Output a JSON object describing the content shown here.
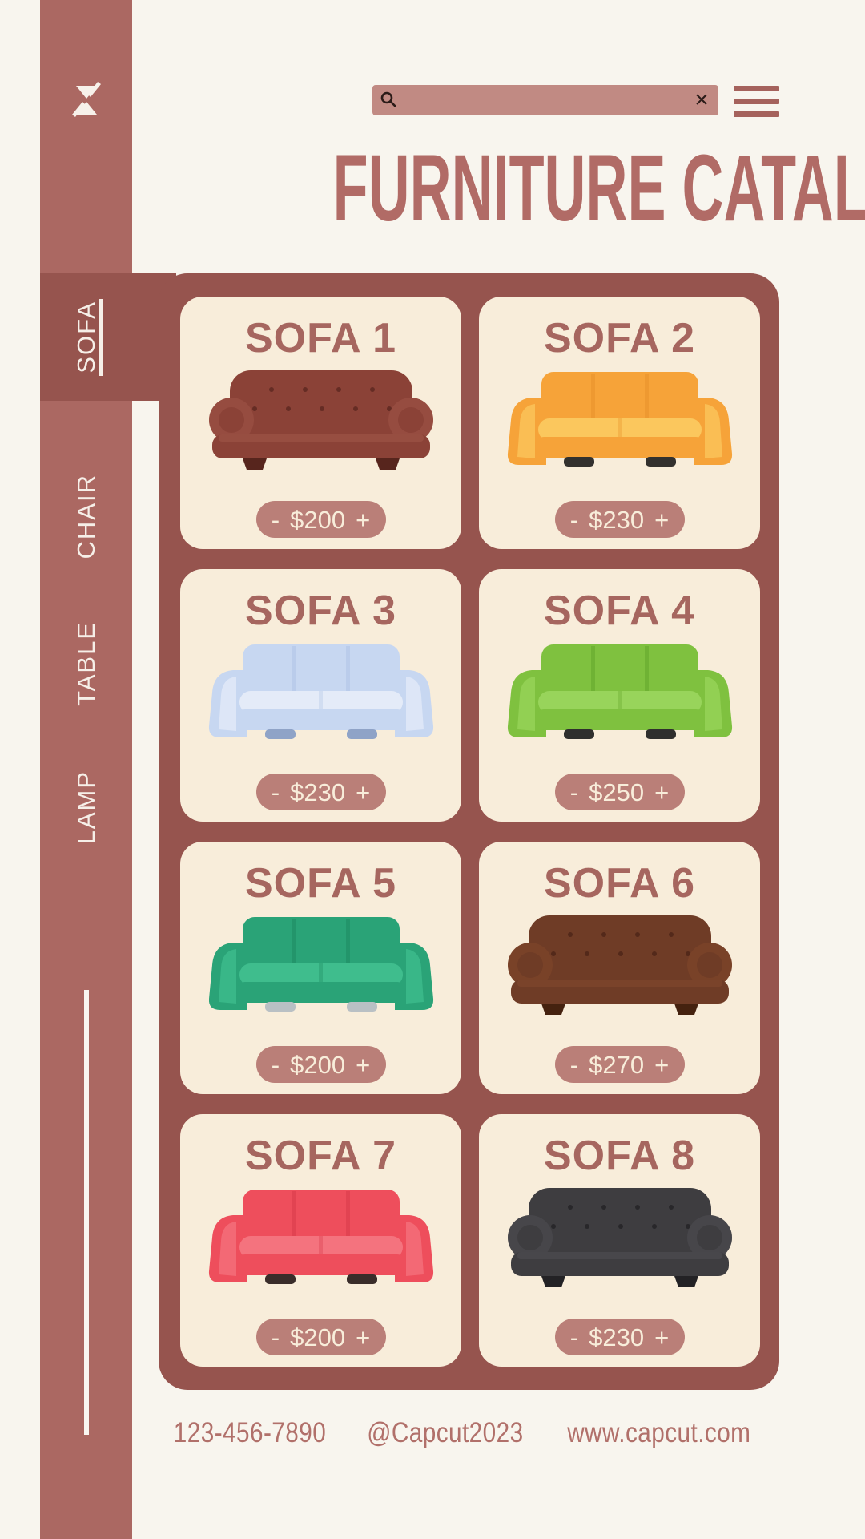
{
  "title": "FURNITURE CATALOG",
  "topbar": {
    "search": {
      "placeholder": "",
      "value": "",
      "clear_label": "×"
    }
  },
  "sidebar": {
    "items": [
      {
        "id": "sofa",
        "label": "SOFA",
        "active": true
      },
      {
        "id": "chair",
        "label": "CHAIR",
        "active": false
      },
      {
        "id": "table",
        "label": "TABLE",
        "active": false
      },
      {
        "id": "lamp",
        "label": "LAMP",
        "active": false
      }
    ]
  },
  "catalog": {
    "cards": [
      {
        "title": "SOFA 1",
        "minus": "-",
        "price": "$200",
        "plus": "+",
        "variant": "chesterfield",
        "colors": {
          "body": "#8b4237",
          "light": "#a3594b",
          "dark": "#652c24",
          "feet": "#57251d"
        }
      },
      {
        "title": "SOFA 2",
        "minus": "-",
        "price": "$230",
        "plus": "+",
        "variant": "modern",
        "colors": {
          "body": "#f6a339",
          "light": "#fbc75d",
          "dark": "#e8912b",
          "feet": "#33312e"
        }
      },
      {
        "title": "SOFA 3",
        "minus": "-",
        "price": "$230",
        "plus": "+",
        "variant": "modern",
        "colors": {
          "body": "#c7d7f1",
          "light": "#e4ebf8",
          "dark": "#afc3e6",
          "feet": "#8fa3c7"
        }
      },
      {
        "title": "SOFA 4",
        "minus": "-",
        "price": "$250",
        "plus": "+",
        "variant": "modern",
        "colors": {
          "body": "#7fc13f",
          "light": "#98d45b",
          "dark": "#63a52b",
          "feet": "#2f2f2d"
        }
      },
      {
        "title": "SOFA 5",
        "minus": "-",
        "price": "$200",
        "plus": "+",
        "variant": "modern",
        "colors": {
          "body": "#2aa377",
          "light": "#3fbd8d",
          "dark": "#1e8a62",
          "feet": "#b9c0c4"
        }
      },
      {
        "title": "SOFA 6",
        "minus": "-",
        "price": "$270",
        "plus": "+",
        "variant": "chesterfield",
        "colors": {
          "body": "#6f3c26",
          "light": "#85492d",
          "dark": "#53291a",
          "feet": "#45220f"
        }
      },
      {
        "title": "SOFA 7",
        "minus": "-",
        "price": "$200",
        "plus": "+",
        "variant": "modern",
        "colors": {
          "body": "#ee4e5c",
          "light": "#f4737e",
          "dark": "#d83a4b",
          "feet": "#3a2d2a"
        }
      },
      {
        "title": "SOFA 8",
        "minus": "-",
        "price": "$230",
        "plus": "+",
        "variant": "chesterfield",
        "colors": {
          "body": "#3e3d40",
          "light": "#525156",
          "dark": "#28272a",
          "feet": "#232225"
        }
      }
    ]
  },
  "footer": {
    "phone": "123-456-7890",
    "handle": "@Capcut2023",
    "website": "www.capcut.com"
  },
  "theme": {
    "page_bg": "#f8f5ee",
    "sidebar": "#ab6862",
    "panel": "#96544e",
    "card": "#f8edda",
    "accent": "#b16b66",
    "card_title": "#a6665f",
    "pill": "#ba7f78",
    "pill_text": "#f8edda",
    "search_bar": "#c18a83",
    "icon_dark": "#2b1b18",
    "menu_icon_color": "#a5625c",
    "sidebar_text": "#f6efe8"
  }
}
